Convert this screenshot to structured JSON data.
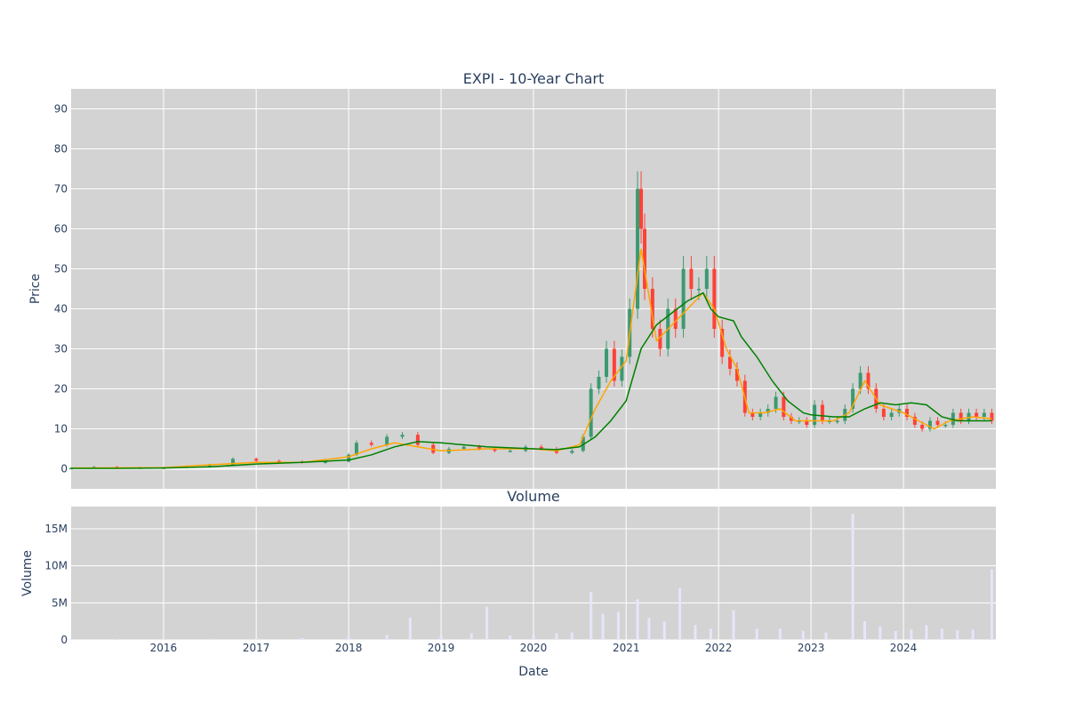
{
  "chart_data": [
    {
      "type": "candlestick",
      "title": "EXPI - 10-Year Chart",
      "xlabel": "",
      "ylabel": "Price",
      "ylim": [
        -5,
        95
      ],
      "yticks": [
        0,
        10,
        20,
        30,
        40,
        50,
        60,
        70,
        80,
        90
      ],
      "grid": true,
      "colors": {
        "plot_bg": "#d3d3d3",
        "grid": "#ffffff",
        "up": "#3d9970",
        "down": "#ff4136",
        "ma_short": "#ffa500",
        "ma_long": "#008000"
      },
      "series": [
        {
          "name": "",
          "x": [
            "2015-01-01",
            "2015-04-01",
            "2015-07-01",
            "2015-10-01",
            "2016-01-01",
            "2016-04-01",
            "2016-07-01",
            "2016-10-01",
            "2017-01-01",
            "2017-04-01",
            "2017-07-01",
            "2017-10-01",
            "2018-01-01",
            "2018-02-01",
            "2018-04-01",
            "2018-06-01",
            "2018-08-01",
            "2018-10-01",
            "2018-12-01",
            "2019-02-01",
            "2019-04-01",
            "2019-06-01",
            "2019-08-01",
            "2019-10-01",
            "2019-12-01",
            "2020-02-01",
            "2020-04-01",
            "2020-06-01",
            "2020-07-15",
            "2020-08-15",
            "2020-09-15",
            "2020-10-15",
            "2020-11-15",
            "2020-12-15",
            "2021-01-15",
            "2021-02-15",
            "2021-03-01",
            "2021-03-15",
            "2021-04-15",
            "2021-05-15",
            "2021-06-15",
            "2021-07-15",
            "2021-08-15",
            "2021-09-15",
            "2021-10-15",
            "2021-11-15",
            "2021-12-15",
            "2022-01-15",
            "2022-02-15",
            "2022-03-15",
            "2022-04-15",
            "2022-05-15",
            "2022-06-15",
            "2022-07-15",
            "2022-08-15",
            "2022-09-15",
            "2022-10-15",
            "2022-11-15",
            "2022-12-15",
            "2023-01-15",
            "2023-02-15",
            "2023-03-15",
            "2023-04-15",
            "2023-05-15",
            "2023-06-15",
            "2023-07-15",
            "2023-08-15",
            "2023-09-15",
            "2023-10-15",
            "2023-11-15",
            "2023-12-15",
            "2024-01-15",
            "2024-02-15",
            "2024-03-15",
            "2024-04-15",
            "2024-05-15",
            "2024-06-15",
            "2024-07-15",
            "2024-08-15",
            "2024-09-15",
            "2024-10-15",
            "2024-11-15",
            "2024-12-15"
          ],
          "close": [
            0.2,
            0.5,
            0.3,
            0.3,
            0.3,
            0.6,
            1.0,
            2.5,
            2.0,
            1.8,
            1.5,
            1.8,
            3.5,
            6.5,
            6.0,
            8.0,
            8.5,
            6.0,
            4.0,
            5.0,
            5.5,
            5.0,
            4.5,
            4.5,
            5.5,
            5.0,
            4.0,
            4.5,
            8.0,
            20.0,
            23.0,
            30.0,
            22.0,
            28.0,
            40.0,
            70.0,
            60.0,
            45.0,
            35.0,
            30.0,
            40.0,
            35.0,
            50.0,
            45.0,
            45.0,
            50.0,
            35.0,
            28.0,
            25.0,
            22.0,
            14.0,
            13.0,
            14.0,
            15.0,
            18.0,
            13.0,
            12.0,
            12.0,
            11.0,
            16.0,
            12.0,
            12.0,
            12.0,
            15.0,
            20.0,
            24.0,
            20.0,
            15.0,
            13.0,
            14.0,
            15.0,
            13.0,
            11.0,
            10.0,
            12.0,
            11.0,
            11.0,
            14.0,
            12.0,
            14.0,
            13.0,
            14.0,
            12.0
          ]
        },
        {
          "name": "",
          "x": [
            "2015-01-01",
            "2016-01-01",
            "2016-07-01",
            "2017-01-01",
            "2017-07-01",
            "2018-01-01",
            "2018-04-01",
            "2018-07-01",
            "2018-10-01",
            "2019-01-01",
            "2019-07-01",
            "2020-01-01",
            "2020-04-01",
            "2020-07-01",
            "2020-09-01",
            "2020-11-01",
            "2021-01-01",
            "2021-03-01",
            "2021-05-01",
            "2021-07-01",
            "2021-09-01",
            "2021-11-01",
            "2021-12-15",
            "2022-02-01",
            "2022-03-15",
            "2022-05-01",
            "2022-07-01",
            "2022-09-01",
            "2022-11-01",
            "2023-01-01",
            "2023-04-01",
            "2023-06-01",
            "2023-08-01",
            "2023-10-01",
            "2024-01-01",
            "2024-03-01",
            "2024-05-01",
            "2024-07-01",
            "2024-10-01",
            "2024-12-15"
          ],
          "values": [
            0.2,
            0.3,
            1.0,
            1.6,
            1.6,
            3.0,
            5.0,
            6.5,
            5.5,
            4.5,
            5.0,
            5.0,
            4.5,
            6.0,
            15.0,
            22.0,
            27.0,
            55.0,
            32.0,
            36.0,
            40.0,
            44.0,
            40.0,
            30.0,
            25.0,
            14.0,
            14.0,
            15.0,
            12.0,
            12.0,
            12.0,
            14.0,
            22.0,
            16.0,
            14.0,
            12.0,
            10.0,
            12.0,
            13.0,
            12.5
          ]
        },
        {
          "name": "",
          "x": [
            "2015-01-01",
            "2015-07-01",
            "2016-01-01",
            "2016-07-01",
            "2017-01-01",
            "2017-07-01",
            "2018-01-01",
            "2018-04-01",
            "2018-07-01",
            "2018-10-01",
            "2019-01-01",
            "2019-07-01",
            "2020-01-01",
            "2020-04-01",
            "2020-07-01",
            "2020-09-01",
            "2020-11-01",
            "2021-01-01",
            "2021-03-01",
            "2021-05-01",
            "2021-07-01",
            "2021-09-01",
            "2021-11-01",
            "2021-12-01",
            "2022-01-01",
            "2022-03-01",
            "2022-04-01",
            "2022-06-01",
            "2022-08-01",
            "2022-10-01",
            "2022-12-01",
            "2023-01-01",
            "2023-04-01",
            "2023-06-01",
            "2023-08-01",
            "2023-10-01",
            "2023-12-01",
            "2024-02-01",
            "2024-04-01",
            "2024-06-01",
            "2024-08-01",
            "2024-12-15"
          ],
          "values": [
            0.1,
            0.1,
            0.2,
            0.5,
            1.2,
            1.6,
            2.2,
            3.5,
            5.5,
            6.8,
            6.5,
            5.5,
            5.0,
            4.8,
            5.5,
            8.0,
            12.0,
            17.0,
            30.0,
            36.0,
            39.0,
            42.0,
            44.0,
            40.0,
            38.0,
            37.0,
            33.0,
            28.0,
            22.0,
            17.0,
            14.0,
            13.5,
            13.0,
            13.0,
            15.0,
            16.5,
            16.0,
            16.5,
            16.0,
            13.0,
            12.0,
            12.0
          ]
        }
      ]
    },
    {
      "type": "bar",
      "title": "Volume",
      "xlabel": "Date",
      "ylabel": "Volume",
      "ylim": [
        0,
        18000000
      ],
      "yticks": [
        0,
        5000000,
        10000000,
        15000000
      ],
      "ytick_labels": [
        "0",
        "5M",
        "10M",
        "15M"
      ],
      "xticks": [
        "2016-01-01",
        "2017-01-01",
        "2018-01-01",
        "2019-01-01",
        "2020-01-01",
        "2021-01-01",
        "2022-01-01",
        "2023-01-01",
        "2024-01-01"
      ],
      "xtick_labels": [
        "2016",
        "2017",
        "2018",
        "2019",
        "2020",
        "2021",
        "2022",
        "2023",
        "2024"
      ],
      "grid": true,
      "colors": {
        "bar": "#e6e6fa"
      },
      "x": [
        "2015-01-01",
        "2015-07-01",
        "2016-01-01",
        "2016-07-01",
        "2017-01-01",
        "2017-07-01",
        "2018-01-01",
        "2018-06-01",
        "2018-09-01",
        "2019-01-01",
        "2019-05-01",
        "2019-07-01",
        "2019-10-01",
        "2020-01-01",
        "2020-04-01",
        "2020-06-01",
        "2020-08-15",
        "2020-10-01",
        "2020-12-01",
        "2021-02-15",
        "2021-04-01",
        "2021-06-01",
        "2021-08-01",
        "2021-10-01",
        "2021-12-01",
        "2022-03-01",
        "2022-06-01",
        "2022-09-01",
        "2022-12-01",
        "2023-03-01",
        "2023-06-15",
        "2023-08-01",
        "2023-10-01",
        "2023-12-01",
        "2024-02-01",
        "2024-04-01",
        "2024-06-01",
        "2024-08-01",
        "2024-10-01",
        "2024-12-15"
      ],
      "values": [
        100000,
        80000,
        120000,
        150000,
        200000,
        250000,
        500000,
        700000,
        3000000,
        600000,
        900000,
        4500000,
        600000,
        700000,
        900000,
        1000000,
        6500000,
        3500000,
        3800000,
        5500000,
        3000000,
        2500000,
        7000000,
        2000000,
        1500000,
        4000000,
        1500000,
        1500000,
        1200000,
        1000000,
        17000000,
        2500000,
        1800000,
        1200000,
        1400000,
        2000000,
        1500000,
        1300000,
        1400000,
        9500000
      ]
    }
  ]
}
